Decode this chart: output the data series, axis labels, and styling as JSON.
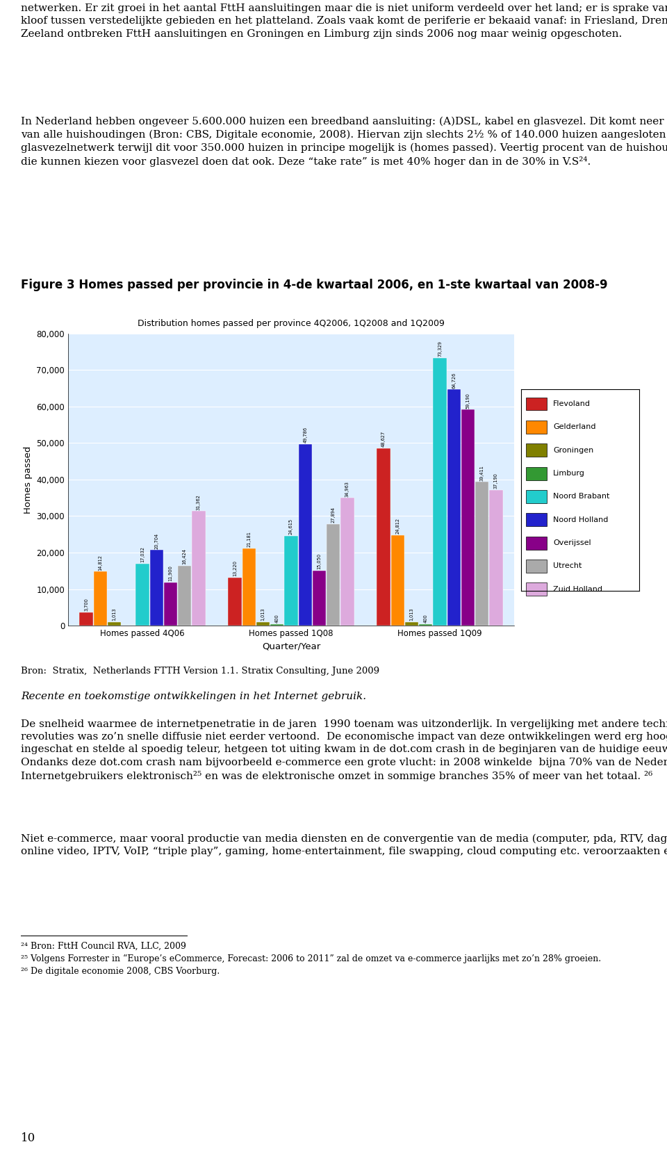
{
  "page_bg": "#ffffff",
  "figure_caption": "Figure 3 Homes passed per provincie in 4-de kwartaal 2006, en 1-ste kwartaal van 2008-9",
  "chart_title": "Distribution homes passed per province 4Q2006, 1Q2008 and 1Q2009",
  "chart_outer_bg": "#c8d4e8",
  "plot_bg": "#ddeeff",
  "legend_bg": "#ffffff",
  "xlabel": "Quarter/Year",
  "ylabel": "Homes passed",
  "xtick_labels": [
    "Homes passed 4Q06",
    "Homes passed 1Q08",
    "Homes passed 1Q09"
  ],
  "ylim": [
    0,
    80000
  ],
  "yticks": [
    0,
    10000,
    20000,
    30000,
    40000,
    50000,
    60000,
    70000,
    80000
  ],
  "ytick_labels": [
    "0",
    "10,000",
    "20,000",
    "30,000",
    "40,000",
    "50,000",
    "60,000",
    "70,000",
    "80,000"
  ],
  "series": {
    "Flevoland": [
      3700,
      13220,
      48627
    ],
    "Gelderland": [
      14812,
      21181,
      24812
    ],
    "Groningen": [
      1013,
      1013,
      1013
    ],
    "Limburg": [
      0,
      400,
      400
    ],
    "Noord Brabant": [
      17032,
      24615,
      73329
    ],
    "Noord Holland": [
      20704,
      49786,
      64726
    ],
    "Overijssel": [
      11900,
      15050,
      59190
    ],
    "Utrecht": [
      16424,
      27894,
      39411
    ],
    "Zuid Holland": [
      31362,
      34963,
      37190
    ]
  },
  "colors": {
    "Flevoland": "#cc2222",
    "Gelderland": "#ff8800",
    "Groningen": "#808000",
    "Limburg": "#339933",
    "Noord Brabant": "#22cccc",
    "Noord Holland": "#2222cc",
    "Overijssel": "#880088",
    "Utrecht": "#aaaaaa",
    "Zuid Holland": "#ddaadd"
  },
  "source_text": "Bron:  Stratix,  Netherlands FTTH Version 1.1. Stratix Consulting, June 2009"
}
